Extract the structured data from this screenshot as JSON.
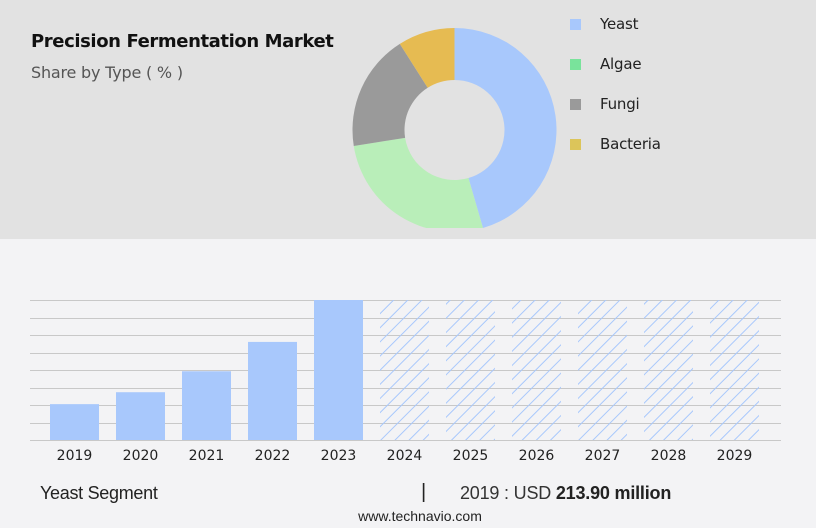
{
  "header": {
    "title": "Precision Fermentation Market",
    "subtitle": "Share by Type ( % )"
  },
  "legend": [
    {
      "label": "Yeast",
      "color": "#a8c8fc"
    },
    {
      "label": "Algae",
      "color": "#79e39b"
    },
    {
      "label": "Fungi",
      "color": "#9a9a9a"
    },
    {
      "label": "Bacteria",
      "color": "#dcc55a"
    }
  ],
  "footer": {
    "segment": "Yeast Segment",
    "separator": "|",
    "year_prefix": "2019 : USD ",
    "value": "213.90 million",
    "url": "www.technavio.com"
  },
  "chart_data": [
    {
      "type": "pie",
      "title": "Precision Fermentation Market",
      "subtitle": "Share by Type ( % )",
      "donut": true,
      "labels": [
        "Yeast",
        "Algae",
        "Fungi",
        "Bacteria"
      ],
      "values": [
        45.5,
        27,
        18.5,
        9
      ],
      "colors": [
        "#a8c8fc",
        "#b9eeb9",
        "#9a9a9a",
        "#e6bb52"
      ],
      "legend_position": "right"
    },
    {
      "type": "bar",
      "title": "Yeast Segment",
      "categories": [
        "2019",
        "2020",
        "2021",
        "2022",
        "2023",
        "2024",
        "2025",
        "2026",
        "2027",
        "2028",
        "2029"
      ],
      "values": [
        213.9,
        285,
        410,
        585,
        835,
        null,
        null,
        null,
        null,
        null,
        null
      ],
      "forecast": [
        false,
        false,
        false,
        false,
        false,
        true,
        true,
        true,
        true,
        true,
        true
      ],
      "annotation": "2019 : USD 213.90 million",
      "color": "#a8c8fc",
      "grid": true,
      "ylabel": "",
      "xlabel": ""
    }
  ]
}
